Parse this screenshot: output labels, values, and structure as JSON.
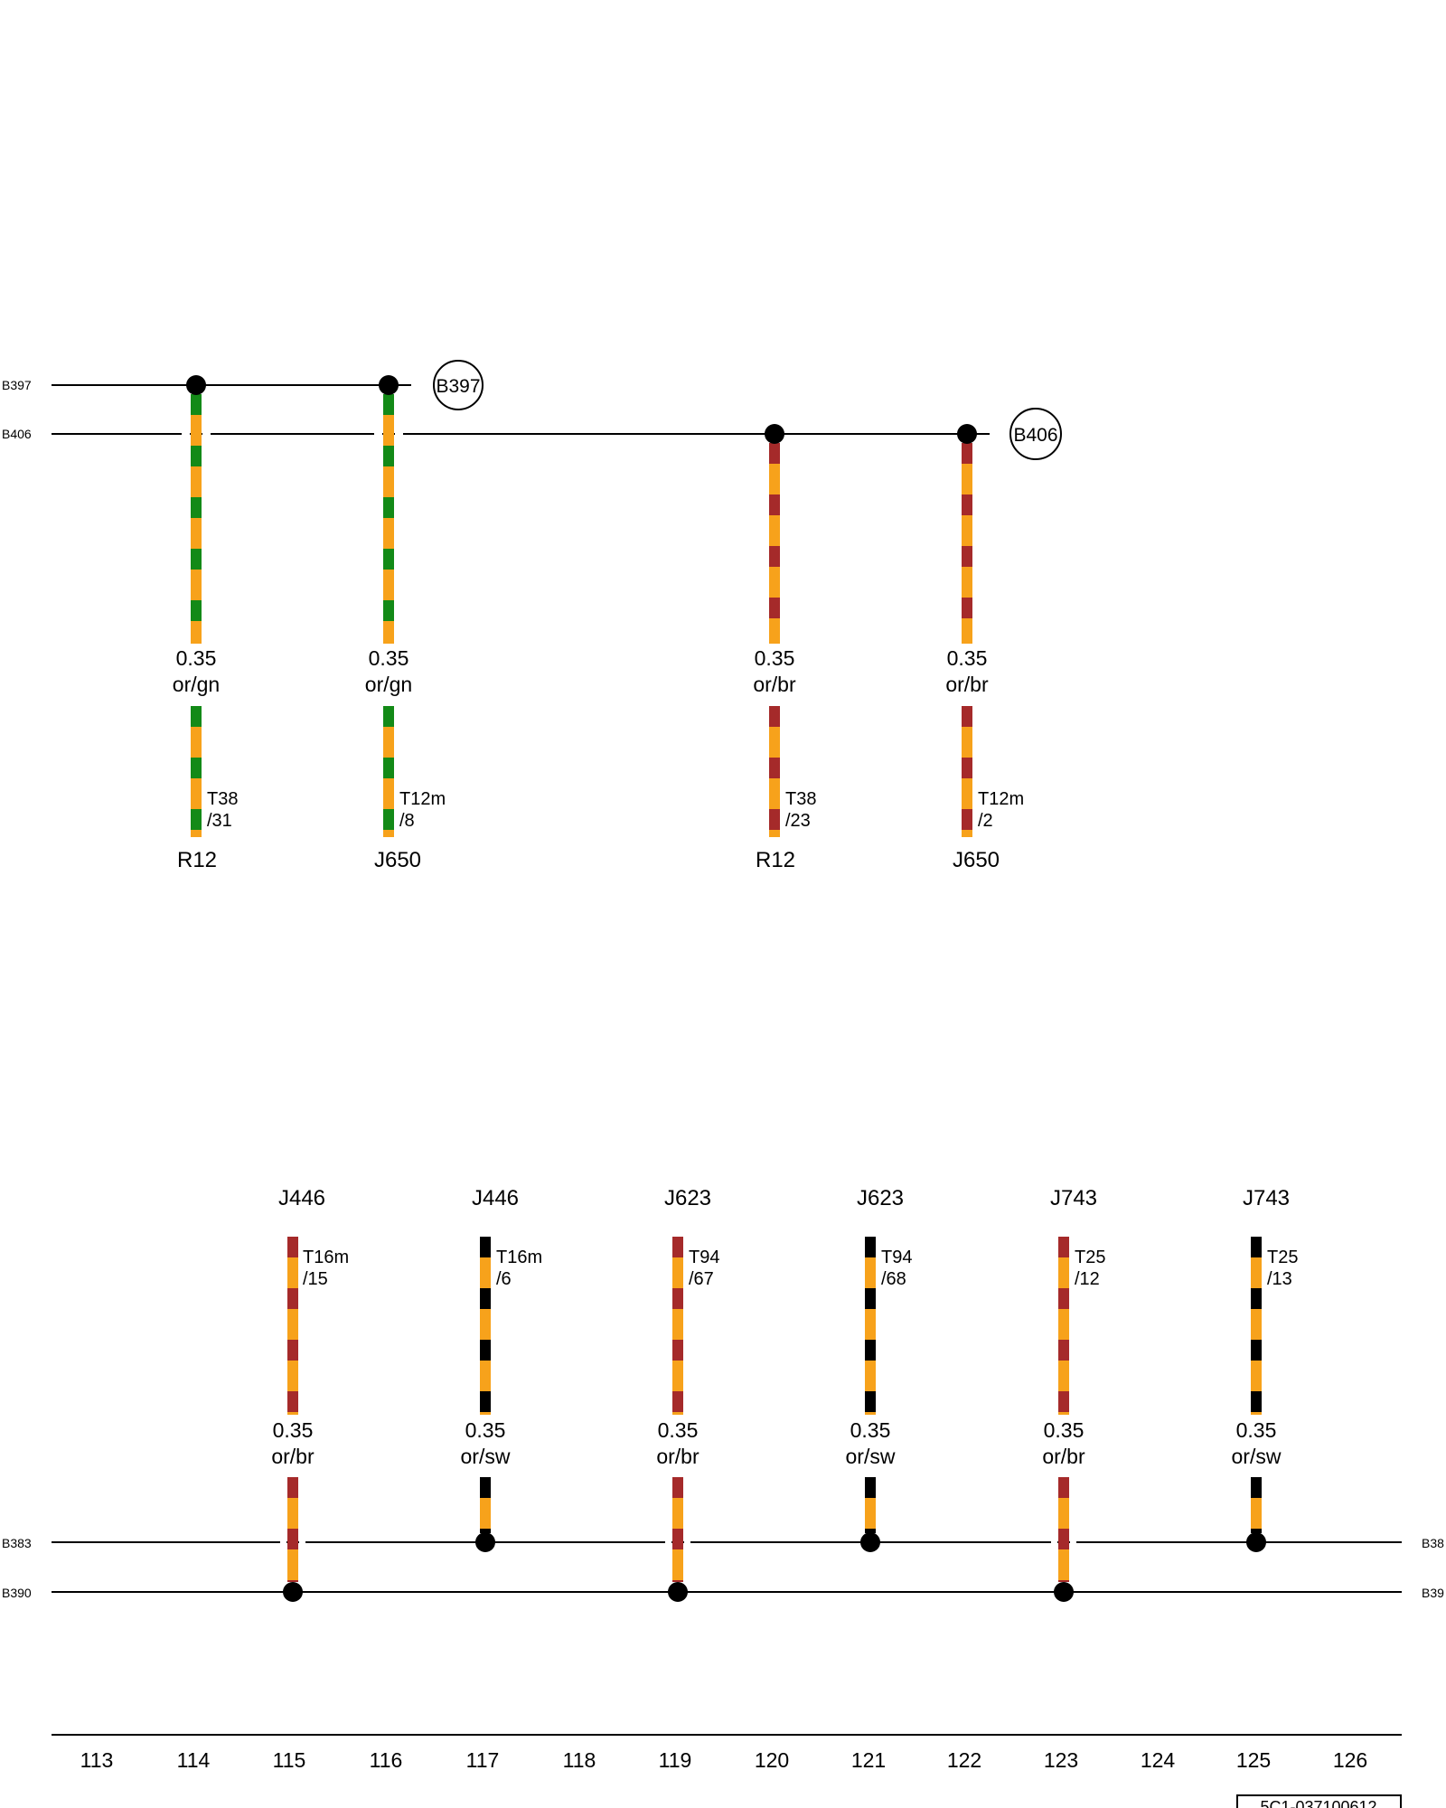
{
  "colors": {
    "or": "#f7a21b",
    "gn": "#138a17",
    "br": "#a52a2a",
    "sw": "#000000",
    "line": "#000000"
  },
  "top": {
    "bus_labels": [
      "B397",
      "B406"
    ],
    "bus_tags": [
      "B397",
      "B406"
    ],
    "wires": [
      {
        "id": "w1",
        "bus": "B397",
        "size": "0.35",
        "color": "or/gn",
        "connector": "T38",
        "pin": "/31",
        "component": "R12"
      },
      {
        "id": "w2",
        "bus": "B397",
        "size": "0.35",
        "color": "or/gn",
        "connector": "T12m",
        "pin": "/8",
        "component": "J650"
      },
      {
        "id": "w3",
        "bus": "B406",
        "size": "0.35",
        "color": "or/br",
        "connector": "T38",
        "pin": "/23",
        "component": "R12"
      },
      {
        "id": "w4",
        "bus": "B406",
        "size": "0.35",
        "color": "or/br",
        "connector": "T12m",
        "pin": "/2",
        "component": "J650"
      }
    ]
  },
  "bottom": {
    "bus_labels": [
      "B383",
      "B390"
    ],
    "bus_labels_right": [
      "B38",
      "B39"
    ],
    "wires": [
      {
        "id": "w5",
        "bus": "B390",
        "size": "0.35",
        "color": "or/br",
        "connector": "T16m",
        "pin": "/15",
        "component": "J446"
      },
      {
        "id": "w6",
        "bus": "B383",
        "size": "0.35",
        "color": "or/sw",
        "connector": "T16m",
        "pin": "/6",
        "component": "J446"
      },
      {
        "id": "w7",
        "bus": "B390",
        "size": "0.35",
        "color": "or/br",
        "connector": "T94",
        "pin": "/67",
        "component": "J623"
      },
      {
        "id": "w8",
        "bus": "B383",
        "size": "0.35",
        "color": "or/sw",
        "connector": "T94",
        "pin": "/68",
        "component": "J623"
      },
      {
        "id": "w9",
        "bus": "B390",
        "size": "0.35",
        "color": "or/br",
        "connector": "T25",
        "pin": "/12",
        "component": "J743"
      },
      {
        "id": "w10",
        "bus": "B383",
        "size": "0.35",
        "color": "or/sw",
        "connector": "T25",
        "pin": "/13",
        "component": "J743"
      }
    ]
  },
  "ruler": {
    "numbers": [
      "113",
      "114",
      "115",
      "116",
      "117",
      "118",
      "119",
      "120",
      "121",
      "122",
      "123",
      "124",
      "125",
      "126"
    ]
  },
  "doc_number": "5C1-037100612"
}
